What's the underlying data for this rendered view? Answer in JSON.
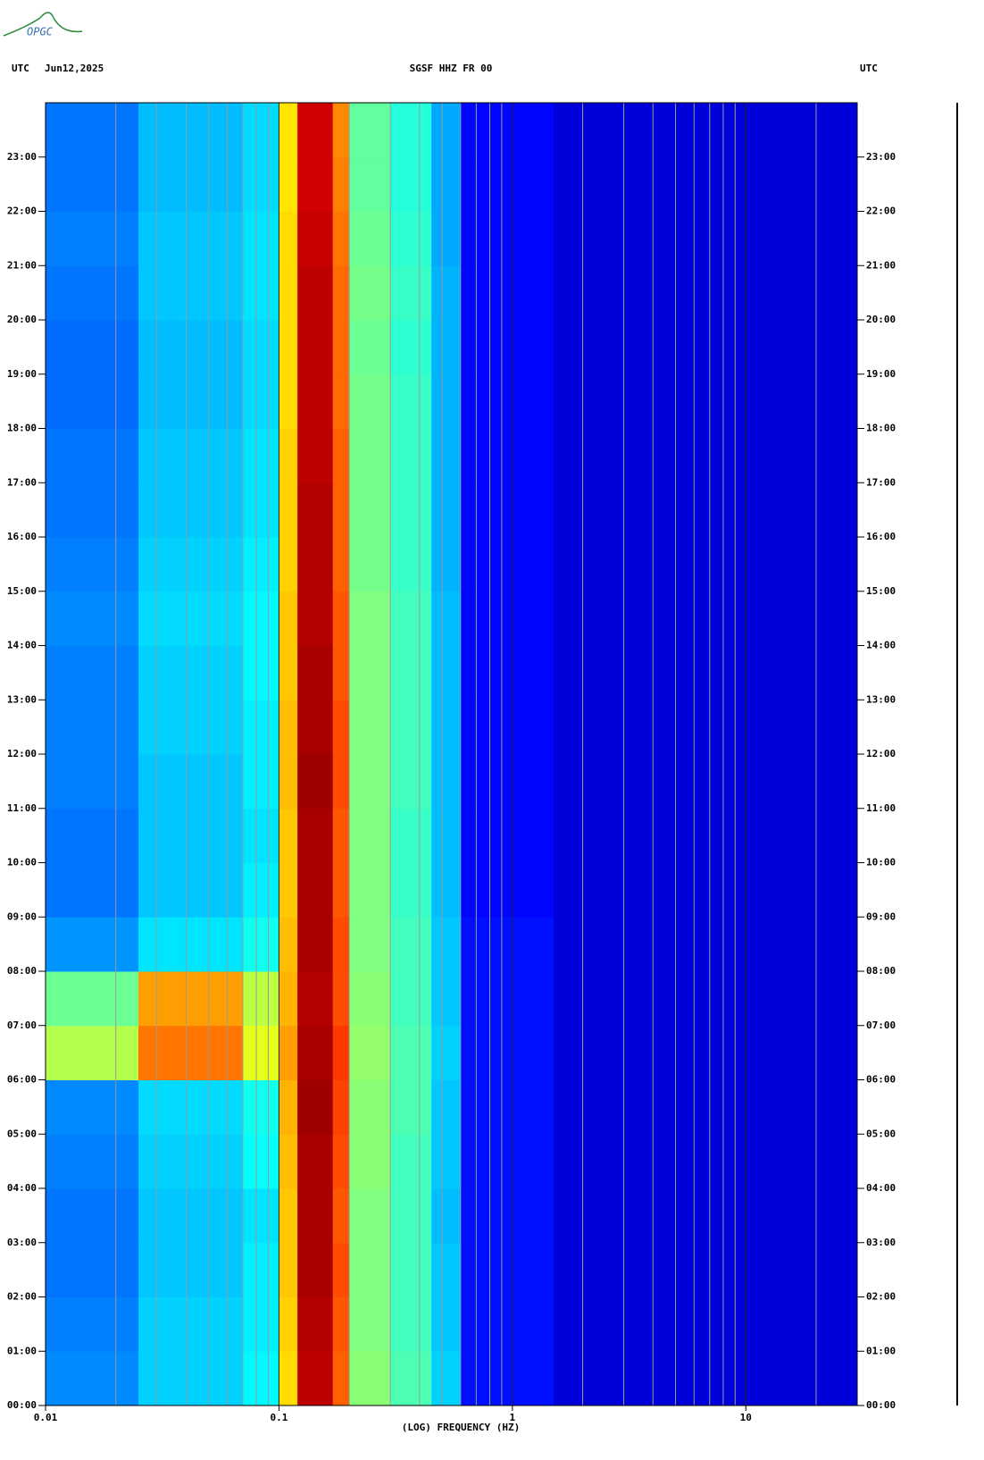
{
  "chart_data": {
    "type": "spectrogram",
    "logo": "OPGC",
    "left_header": "UTC",
    "date": "Jun12,2025",
    "title": "SGSF HHZ FR 00",
    "right_header": "UTC",
    "xlabel": "(LOG) FREQUENCY (HZ)",
    "xscale": "log",
    "xlim": [
      0.01,
      30
    ],
    "xticks": [
      0.01,
      0.1,
      1,
      10
    ],
    "xgrid": [
      0.02,
      0.03,
      0.04,
      0.05,
      0.06,
      0.07,
      0.08,
      0.09,
      0.2,
      0.3,
      0.4,
      0.5,
      0.6,
      0.7,
      0.8,
      0.9,
      2,
      3,
      4,
      5,
      6,
      7,
      8,
      9,
      20
    ],
    "ylim": [
      0,
      24
    ],
    "yticks": [
      {
        "value": 0,
        "label": "00:00"
      },
      {
        "value": 1,
        "label": "01:00"
      },
      {
        "value": 2,
        "label": "02:00"
      },
      {
        "value": 3,
        "label": "03:00"
      },
      {
        "value": 4,
        "label": "04:00"
      },
      {
        "value": 5,
        "label": "05:00"
      },
      {
        "value": 6,
        "label": "06:00"
      },
      {
        "value": 7,
        "label": "07:00"
      },
      {
        "value": 8,
        "label": "08:00"
      },
      {
        "value": 9,
        "label": "09:00"
      },
      {
        "value": 10,
        "label": "10:00"
      },
      {
        "value": 11,
        "label": "11:00"
      },
      {
        "value": 12,
        "label": "12:00"
      },
      {
        "value": 13,
        "label": "13:00"
      },
      {
        "value": 14,
        "label": "14:00"
      },
      {
        "value": 15,
        "label": "15:00"
      },
      {
        "value": 16,
        "label": "16:00"
      },
      {
        "value": 17,
        "label": "17:00"
      },
      {
        "value": 18,
        "label": "18:00"
      },
      {
        "value": 19,
        "label": "19:00"
      },
      {
        "value": 20,
        "label": "20:00"
      },
      {
        "value": 21,
        "label": "21:00"
      },
      {
        "value": 22,
        "label": "22:00"
      },
      {
        "value": 23,
        "label": "23:00"
      }
    ],
    "colormap": "jet",
    "zlim": [
      0,
      10
    ],
    "bins": [
      0.01,
      0.025,
      0.07,
      0.1,
      0.12,
      0.17,
      0.2,
      0.3,
      0.45,
      0.6,
      1.5,
      30
    ],
    "z": [
      [
        2.6,
        3.3,
        3.7,
        6.6,
        9.4,
        7.8,
        5.1,
        4.5,
        3.3,
        1.4,
        0.9
      ],
      [
        2.5,
        3.3,
        3.6,
        6.7,
        9.5,
        7.9,
        5.0,
        4.4,
        3.2,
        1.4,
        0.9
      ],
      [
        2.4,
        3.2,
        3.6,
        6.8,
        9.6,
        8.0,
        5.0,
        4.4,
        3.2,
        1.4,
        0.9
      ],
      [
        2.4,
        3.2,
        3.5,
        6.8,
        9.6,
        7.9,
        5.0,
        4.4,
        3.1,
        1.4,
        0.9
      ],
      [
        2.5,
        3.3,
        3.8,
        6.9,
        9.6,
        8.0,
        5.1,
        4.4,
        3.2,
        1.4,
        0.9
      ],
      [
        2.6,
        3.4,
        3.9,
        7.0,
        9.7,
        8.1,
        5.1,
        4.5,
        3.2,
        1.4,
        0.9
      ],
      [
        5.5,
        7.6,
        6.0,
        7.2,
        9.6,
        8.2,
        5.2,
        4.5,
        3.3,
        1.4,
        0.9
      ],
      [
        4.8,
        7.2,
        5.6,
        7.0,
        9.5,
        8.0,
        5.1,
        4.4,
        3.2,
        1.4,
        0.9
      ],
      [
        2.7,
        3.5,
        3.9,
        6.9,
        9.6,
        8.0,
        5.0,
        4.4,
        3.2,
        1.4,
        0.9
      ],
      [
        2.4,
        3.2,
        3.6,
        6.8,
        9.6,
        7.9,
        5.0,
        4.3,
        3.1,
        1.3,
        0.9
      ],
      [
        2.4,
        3.2,
        3.5,
        6.8,
        9.6,
        7.9,
        5.0,
        4.3,
        3.1,
        1.3,
        0.9
      ],
      [
        2.5,
        3.2,
        3.6,
        6.9,
        9.7,
        8.0,
        5.0,
        4.4,
        3.1,
        1.3,
        0.9
      ],
      [
        2.5,
        3.3,
        3.6,
        6.9,
        9.6,
        8.0,
        5.0,
        4.4,
        3.1,
        1.3,
        0.9
      ],
      [
        2.5,
        3.3,
        3.7,
        6.8,
        9.6,
        7.9,
        5.0,
        4.4,
        3.1,
        1.3,
        0.9
      ],
      [
        2.6,
        3.4,
        3.7,
        6.8,
        9.5,
        7.9,
        5.0,
        4.4,
        3.1,
        1.3,
        0.9
      ],
      [
        2.5,
        3.3,
        3.6,
        6.7,
        9.5,
        7.8,
        4.9,
        4.3,
        3.0,
        1.3,
        0.9
      ],
      [
        2.4,
        3.2,
        3.5,
        6.7,
        9.5,
        7.8,
        4.9,
        4.3,
        3.0,
        1.3,
        0.9
      ],
      [
        2.4,
        3.2,
        3.5,
        6.7,
        9.4,
        7.8,
        4.9,
        4.3,
        3.0,
        1.3,
        0.9
      ],
      [
        2.3,
        3.1,
        3.4,
        6.6,
        9.4,
        7.7,
        4.9,
        4.3,
        3.0,
        1.3,
        0.9
      ],
      [
        2.3,
        3.1,
        3.4,
        6.6,
        9.4,
        7.7,
        4.8,
        4.2,
        3.0,
        1.3,
        0.9
      ],
      [
        2.4,
        3.2,
        3.5,
        6.6,
        9.4,
        7.7,
        4.9,
        4.3,
        3.0,
        1.3,
        0.9
      ],
      [
        2.5,
        3.2,
        3.5,
        6.6,
        9.3,
        7.6,
        4.8,
        4.2,
        2.9,
        1.3,
        0.9
      ],
      [
        2.4,
        3.1,
        3.4,
        6.5,
        9.2,
        7.5,
        4.7,
        4.1,
        2.9,
        1.3,
        0.9
      ],
      [
        2.4,
        3.1,
        3.4,
        6.5,
        9.2,
        7.4,
        4.7,
        4.1,
        2.9,
        1.3,
        0.9
      ]
    ]
  }
}
